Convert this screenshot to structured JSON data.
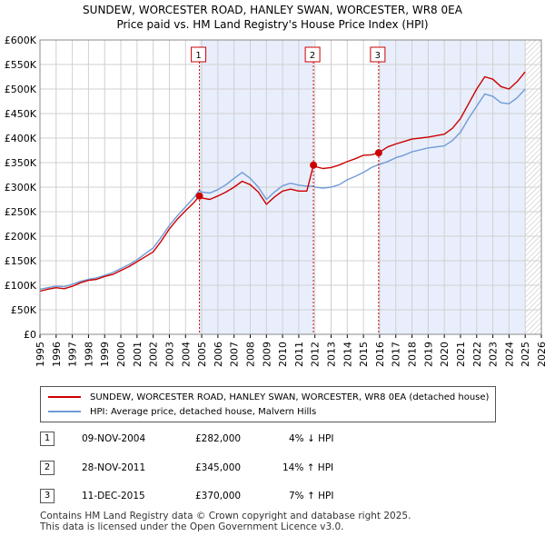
{
  "title_line1": "SUNDEW, WORCESTER ROAD, HANLEY SWAN, WORCESTER, WR8 0EA",
  "title_line2": "Price paid vs. HM Land Registry's House Price Index (HPI)",
  "colors": {
    "red": "#cc0000",
    "blue": "#6f9bd8",
    "shade": "#e8eefb",
    "grid": "#d0d0d0"
  },
  "chart_data": {
    "type": "line",
    "x_range": [
      1995,
      2026
    ],
    "ylim": [
      0,
      600000
    ],
    "y_ticks": [
      {
        "v": 0,
        "label": "£0"
      },
      {
        "v": 50000,
        "label": "£50K"
      },
      {
        "v": 100000,
        "label": "£100K"
      },
      {
        "v": 150000,
        "label": "£150K"
      },
      {
        "v": 200000,
        "label": "£200K"
      },
      {
        "v": 250000,
        "label": "£250K"
      },
      {
        "v": 300000,
        "label": "£300K"
      },
      {
        "v": 350000,
        "label": "£350K"
      },
      {
        "v": 400000,
        "label": "£400K"
      },
      {
        "v": 450000,
        "label": "£450K"
      },
      {
        "v": 500000,
        "label": "£500K"
      },
      {
        "v": 550000,
        "label": "£550K"
      },
      {
        "v": 600000,
        "label": "£600K"
      }
    ],
    "x_ticks": [
      "1995",
      "1996",
      "1997",
      "1998",
      "1999",
      "2000",
      "2001",
      "2002",
      "2003",
      "2004",
      "2005",
      "2006",
      "2007",
      "2008",
      "2009",
      "2010",
      "2011",
      "2012",
      "2013",
      "2014",
      "2015",
      "2016",
      "2017",
      "2018",
      "2019",
      "2020",
      "2021",
      "2022",
      "2023",
      "2024",
      "2025",
      "2026"
    ],
    "shaded_ranges": [
      [
        2004.86,
        2011.91
      ],
      [
        2015.94,
        2025.0
      ]
    ],
    "forecast_hatch_start": 2025.0,
    "series": [
      {
        "name": "SUNDEW, WORCESTER ROAD, HANLEY SWAN, WORCESTER, WR8 0EA (detached house)",
        "color": "#cc0000",
        "points": [
          [
            1995.0,
            88000
          ],
          [
            1995.5,
            92000
          ],
          [
            1996.0,
            95000
          ],
          [
            1996.5,
            93000
          ],
          [
            1997.0,
            98000
          ],
          [
            1997.5,
            105000
          ],
          [
            1998.0,
            110000
          ],
          [
            1998.5,
            112000
          ],
          [
            1999.0,
            118000
          ],
          [
            1999.5,
            122000
          ],
          [
            2000.0,
            130000
          ],
          [
            2000.5,
            138000
          ],
          [
            2001.0,
            148000
          ],
          [
            2001.5,
            158000
          ],
          [
            2002.0,
            168000
          ],
          [
            2002.5,
            190000
          ],
          [
            2003.0,
            215000
          ],
          [
            2003.5,
            235000
          ],
          [
            2004.0,
            252000
          ],
          [
            2004.5,
            268000
          ],
          [
            2004.86,
            282000
          ],
          [
            2005.0,
            278000
          ],
          [
            2005.5,
            275000
          ],
          [
            2006.0,
            282000
          ],
          [
            2006.5,
            290000
          ],
          [
            2007.0,
            300000
          ],
          [
            2007.5,
            312000
          ],
          [
            2008.0,
            305000
          ],
          [
            2008.5,
            290000
          ],
          [
            2009.0,
            265000
          ],
          [
            2009.5,
            280000
          ],
          [
            2010.0,
            292000
          ],
          [
            2010.5,
            296000
          ],
          [
            2011.0,
            292000
          ],
          [
            2011.5,
            292000
          ],
          [
            2011.91,
            345000
          ],
          [
            2012.0,
            342000
          ],
          [
            2012.5,
            338000
          ],
          [
            2013.0,
            340000
          ],
          [
            2013.5,
            345000
          ],
          [
            2014.0,
            352000
          ],
          [
            2014.5,
            358000
          ],
          [
            2015.0,
            365000
          ],
          [
            2015.5,
            366000
          ],
          [
            2015.94,
            370000
          ],
          [
            2016.5,
            382000
          ],
          [
            2017.0,
            388000
          ],
          [
            2017.5,
            393000
          ],
          [
            2018.0,
            398000
          ],
          [
            2018.5,
            400000
          ],
          [
            2019.0,
            402000
          ],
          [
            2019.5,
            405000
          ],
          [
            2020.0,
            408000
          ],
          [
            2020.5,
            420000
          ],
          [
            2021.0,
            440000
          ],
          [
            2021.5,
            470000
          ],
          [
            2022.0,
            500000
          ],
          [
            2022.5,
            525000
          ],
          [
            2023.0,
            520000
          ],
          [
            2023.5,
            505000
          ],
          [
            2024.0,
            500000
          ],
          [
            2024.5,
            515000
          ],
          [
            2025.0,
            535000
          ]
        ]
      },
      {
        "name": "HPI: Average price, detached house, Malvern Hills",
        "color": "#6f9bd8",
        "points": [
          [
            1995.0,
            92000
          ],
          [
            1995.5,
            95000
          ],
          [
            1996.0,
            98000
          ],
          [
            1996.5,
            97000
          ],
          [
            1997.0,
            102000
          ],
          [
            1997.5,
            108000
          ],
          [
            1998.0,
            112000
          ],
          [
            1998.5,
            115000
          ],
          [
            1999.0,
            120000
          ],
          [
            1999.5,
            126000
          ],
          [
            2000.0,
            134000
          ],
          [
            2000.5,
            142000
          ],
          [
            2001.0,
            152000
          ],
          [
            2001.5,
            164000
          ],
          [
            2002.0,
            176000
          ],
          [
            2002.5,
            198000
          ],
          [
            2003.0,
            222000
          ],
          [
            2003.5,
            242000
          ],
          [
            2004.0,
            260000
          ],
          [
            2004.5,
            278000
          ],
          [
            2004.86,
            294000
          ],
          [
            2005.0,
            290000
          ],
          [
            2005.5,
            288000
          ],
          [
            2006.0,
            295000
          ],
          [
            2006.5,
            305000
          ],
          [
            2007.0,
            318000
          ],
          [
            2007.5,
            330000
          ],
          [
            2008.0,
            318000
          ],
          [
            2008.5,
            300000
          ],
          [
            2009.0,
            275000
          ],
          [
            2009.5,
            290000
          ],
          [
            2010.0,
            303000
          ],
          [
            2010.5,
            308000
          ],
          [
            2011.0,
            304000
          ],
          [
            2011.5,
            302000
          ],
          [
            2011.91,
            302000
          ],
          [
            2012.0,
            300000
          ],
          [
            2012.5,
            298000
          ],
          [
            2013.0,
            300000
          ],
          [
            2013.5,
            305000
          ],
          [
            2014.0,
            315000
          ],
          [
            2014.5,
            322000
          ],
          [
            2015.0,
            330000
          ],
          [
            2015.5,
            340000
          ],
          [
            2015.94,
            346000
          ],
          [
            2016.5,
            352000
          ],
          [
            2017.0,
            360000
          ],
          [
            2017.5,
            365000
          ],
          [
            2018.0,
            372000
          ],
          [
            2018.5,
            376000
          ],
          [
            2019.0,
            380000
          ],
          [
            2019.5,
            382000
          ],
          [
            2020.0,
            384000
          ],
          [
            2020.5,
            395000
          ],
          [
            2021.0,
            412000
          ],
          [
            2021.5,
            440000
          ],
          [
            2022.0,
            465000
          ],
          [
            2022.5,
            490000
          ],
          [
            2023.0,
            485000
          ],
          [
            2023.5,
            472000
          ],
          [
            2024.0,
            470000
          ],
          [
            2024.5,
            482000
          ],
          [
            2025.0,
            500000
          ]
        ]
      }
    ],
    "sales": [
      {
        "n": "1",
        "x": 2004.86,
        "y": 282000
      },
      {
        "n": "2",
        "x": 2011.91,
        "y": 345000
      },
      {
        "n": "3",
        "x": 2015.94,
        "y": 370000
      }
    ]
  },
  "legend": {
    "red_label": "SUNDEW, WORCESTER ROAD, HANLEY SWAN, WORCESTER, WR8 0EA (detached house)",
    "blue_label": "HPI: Average price, detached house, Malvern Hills"
  },
  "transactions": [
    {
      "n": "1",
      "date": "09-NOV-2004",
      "price": "£282,000",
      "hpi": "4% ↓ HPI"
    },
    {
      "n": "2",
      "date": "28-NOV-2011",
      "price": "£345,000",
      "hpi": "14% ↑ HPI"
    },
    {
      "n": "3",
      "date": "11-DEC-2015",
      "price": "£370,000",
      "hpi": "7% ↑ HPI"
    }
  ],
  "footer_line1": "Contains HM Land Registry data © Crown copyright and database right 2025.",
  "footer_line2": "This data is licensed under the Open Government Licence v3.0."
}
